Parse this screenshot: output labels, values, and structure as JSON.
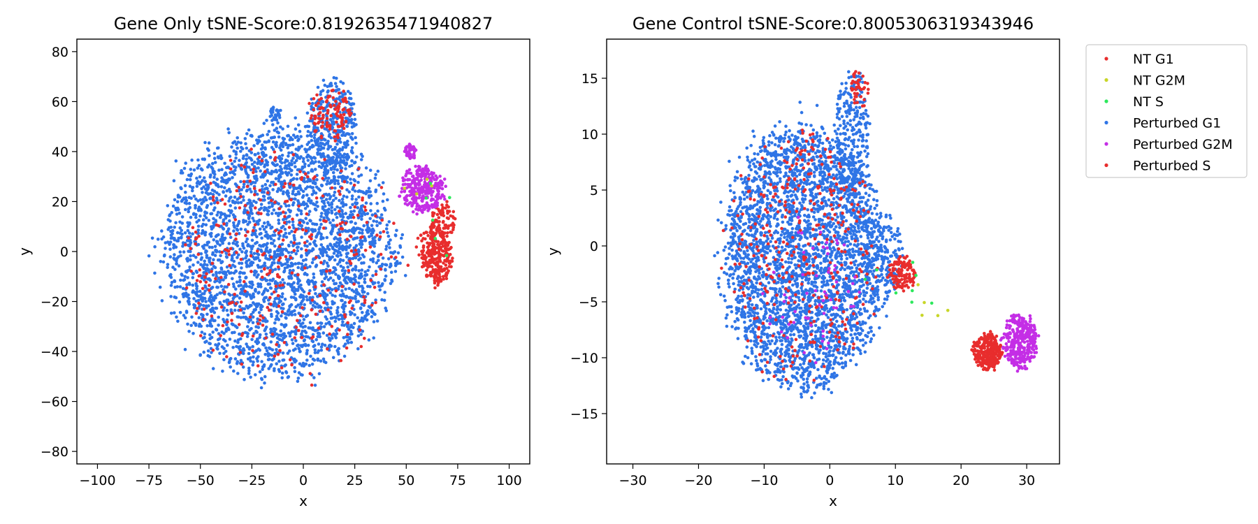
{
  "chart_data": [
    {
      "type": "scatter",
      "title": "Gene Only tSNE-Score:0.8192635471940827",
      "xlabel": "x",
      "ylabel": "y",
      "xlim": [
        -110,
        110
      ],
      "ylim": [
        -85,
        85
      ],
      "xticks": [
        -100,
        -75,
        -50,
        -25,
        0,
        25,
        50,
        75,
        100
      ],
      "yticks": [
        -80,
        -60,
        -40,
        -20,
        0,
        20,
        40,
        60,
        80
      ],
      "clusters": [
        {
          "series": "Perturbed G1",
          "cx": -12,
          "cy": 0,
          "rx": 55,
          "ry": 48,
          "n": 3200
        },
        {
          "series": "Perturbed G1",
          "cx": 14,
          "cy": 50,
          "rx": 12,
          "ry": 18,
          "n": 320
        },
        {
          "series": "Perturbed G1",
          "cx": -14,
          "cy": 55,
          "rx": 3,
          "ry": 3,
          "n": 30
        },
        {
          "series": "Perturbed S",
          "cx": -8,
          "cy": -5,
          "rx": 52,
          "ry": 46,
          "n": 320
        },
        {
          "series": "Perturbed S",
          "cx": 13,
          "cy": 55,
          "rx": 10,
          "ry": 10,
          "n": 110
        },
        {
          "series": "Perturbed S",
          "cx": 65,
          "cy": -2,
          "rx": 7,
          "ry": 11,
          "n": 260
        },
        {
          "series": "Perturbed S",
          "cx": 68,
          "cy": 12,
          "rx": 6,
          "ry": 8,
          "n": 80
        },
        {
          "series": "Perturbed G2M",
          "cx": 58,
          "cy": 25,
          "rx": 11,
          "ry": 9,
          "n": 300
        },
        {
          "series": "Perturbed G2M",
          "cx": 52,
          "cy": 40,
          "rx": 3,
          "ry": 3,
          "n": 40
        },
        {
          "series": "NT G1",
          "cx": 62,
          "cy": 2,
          "rx": 8,
          "ry": 10,
          "n": 40
        },
        {
          "series": "NT S",
          "cx": 60,
          "cy": 10,
          "rx": 15,
          "ry": 20,
          "n": 6
        },
        {
          "series": "NT G2M",
          "cx": 55,
          "cy": 25,
          "rx": 8,
          "ry": 6,
          "n": 4
        }
      ]
    },
    {
      "type": "scatter",
      "title": "Gene Control tSNE-Score:0.8005306319343946",
      "xlabel": "x",
      "ylabel": "y",
      "xlim": [
        -34,
        35
      ],
      "ylim": [
        -19.5,
        18.5
      ],
      "xticks": [
        -30,
        -20,
        -10,
        0,
        10,
        20,
        30
      ],
      "yticks": [
        -15,
        -10,
        -5,
        0,
        5,
        10,
        15
      ],
      "clusters": [
        {
          "series": "Perturbed G1",
          "cx": -4,
          "cy": -1,
          "rx": 12,
          "ry": 11.5,
          "n": 3200
        },
        {
          "series": "Perturbed G1",
          "cx": 3.5,
          "cy": 10,
          "rx": 2.6,
          "ry": 5.5,
          "n": 260
        },
        {
          "series": "Perturbed G1",
          "cx": 8,
          "cy": -1,
          "rx": 3,
          "ry": 4,
          "n": 150
        },
        {
          "series": "Perturbed S",
          "cx": -4,
          "cy": -1,
          "rx": 11,
          "ry": 11,
          "n": 340
        },
        {
          "series": "Perturbed S",
          "cx": 11,
          "cy": -2.5,
          "rx": 2,
          "ry": 1.6,
          "n": 120
        },
        {
          "series": "Perturbed S",
          "cx": 4.5,
          "cy": 14,
          "rx": 1.5,
          "ry": 1.5,
          "n": 40
        },
        {
          "series": "Perturbed S",
          "cx": 24,
          "cy": -9.5,
          "rx": 2.2,
          "ry": 1.6,
          "n": 260
        },
        {
          "series": "Perturbed G2M",
          "cx": 29,
          "cy": -8.5,
          "rx": 2.6,
          "ry": 2.4,
          "n": 320
        },
        {
          "series": "Perturbed G2M",
          "cx": -3,
          "cy": -4,
          "rx": 8,
          "ry": 6,
          "n": 60
        },
        {
          "series": "NT G1",
          "cx": 24.5,
          "cy": -9.7,
          "rx": 1.5,
          "ry": 1.2,
          "n": 30
        },
        {
          "series": "NT G2M",
          "cx": 15,
          "cy": -5,
          "rx": 4,
          "ry": 2,
          "n": 5
        },
        {
          "series": "NT S",
          "cx": 10,
          "cy": -4,
          "rx": 6,
          "ry": 4,
          "n": 8
        }
      ]
    }
  ],
  "legend": {
    "placement": "right of second panel, top",
    "entries": [
      {
        "label": "NT G1",
        "color": "#e82d2d"
      },
      {
        "label": "NT G2M",
        "color": "#c8d628"
      },
      {
        "label": "NT S",
        "color": "#2de85c"
      },
      {
        "label": "Perturbed G1",
        "color": "#2f75e6"
      },
      {
        "label": "Perturbed G2M",
        "color": "#c42ee6"
      },
      {
        "label": "Perturbed S",
        "color": "#e82d2d"
      }
    ]
  }
}
